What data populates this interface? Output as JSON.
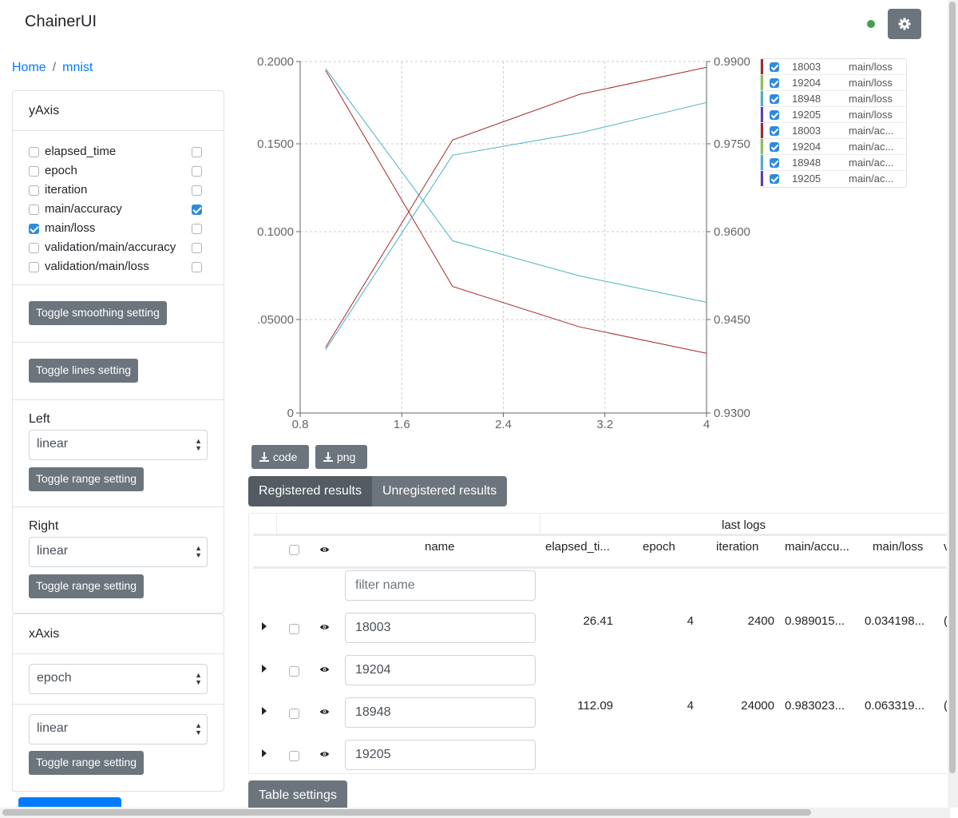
{
  "app": {
    "title": "ChainerUI",
    "status_color": "#43a047"
  },
  "breadcrumb": {
    "home": "Home",
    "separator": "/",
    "current": "mnist"
  },
  "yaxis": {
    "title": "yAxis",
    "items": [
      {
        "label": "elapsed_time",
        "left": false,
        "right": false
      },
      {
        "label": "epoch",
        "left": false,
        "right": false
      },
      {
        "label": "iteration",
        "left": false,
        "right": false
      },
      {
        "label": "main/accuracy",
        "left": false,
        "right": true
      },
      {
        "label": "main/loss",
        "left": true,
        "right": false
      },
      {
        "label": "validation/main/accuracy",
        "left": false,
        "right": false
      },
      {
        "label": "validation/main/loss",
        "left": false,
        "right": false
      }
    ],
    "toggle_smoothing": "Toggle smoothing setting",
    "toggle_lines": "Toggle lines setting",
    "left_label": "Left",
    "left_scale": "linear",
    "left_toggle_range": "Toggle range setting",
    "right_label": "Right",
    "right_scale": "linear",
    "right_toggle_range": "Toggle range setting"
  },
  "xaxis": {
    "title": "xAxis",
    "key": "epoch",
    "scale": "linear",
    "toggle_range": "Toggle range setting"
  },
  "chart_data": {
    "type": "line",
    "x_ticks": [
      "0.8",
      "1.6",
      "2.4",
      "3.2",
      "4"
    ],
    "xlim": [
      0.8,
      4
    ],
    "y_left_ticks": [
      "0.2000",
      "0.1500",
      "0.1000",
      ".05000",
      "0"
    ],
    "y_left_lim": [
      0,
      0.2
    ],
    "y_right_ticks": [
      "0.9900",
      "0.9750",
      "0.9600",
      "0.9450",
      "0.9300"
    ],
    "y_right_lim": [
      0.93,
      0.99
    ],
    "grid": true,
    "legend_position": "right",
    "series": [
      {
        "run": "18003",
        "key": "main/loss",
        "axis": "left",
        "color": "#a52a2a",
        "x": [
          1,
          2,
          3,
          4
        ],
        "y": [
          0.195,
          0.072,
          0.049,
          0.034
        ]
      },
      {
        "run": "18948",
        "key": "main/loss",
        "axis": "left",
        "color": "#47b3c2",
        "x": [
          1,
          2,
          3,
          4
        ],
        "y": [
          0.196,
          0.098,
          0.078,
          0.063
        ]
      },
      {
        "run": "18003",
        "key": "main/accuracy",
        "axis": "right",
        "color": "#a52a2a",
        "x": [
          1,
          2,
          3,
          4
        ],
        "y": [
          0.9412,
          0.9766,
          0.9844,
          0.989
        ]
      },
      {
        "run": "18948",
        "key": "main/accuracy",
        "axis": "right",
        "color": "#47b3c2",
        "x": [
          1,
          2,
          3,
          4
        ],
        "y": [
          0.9408,
          0.974,
          0.9778,
          0.983
        ]
      }
    ]
  },
  "legend": [
    {
      "id": "18003",
      "key": "main/loss",
      "color": "#a52a2a"
    },
    {
      "id": "19204",
      "key": "main/loss",
      "color": "#8bc34a"
    },
    {
      "id": "18948",
      "key": "main/loss",
      "color": "#47b3c2"
    },
    {
      "id": "19205",
      "key": "main/loss",
      "color": "#673ab7"
    },
    {
      "id": "18003",
      "key": "main/ac...",
      "color": "#a52a2a"
    },
    {
      "id": "19204",
      "key": "main/ac...",
      "color": "#8bc34a"
    },
    {
      "id": "18948",
      "key": "main/ac...",
      "color": "#47b3c2"
    },
    {
      "id": "19205",
      "key": "main/ac...",
      "color": "#673ab7"
    }
  ],
  "download": {
    "code": "code",
    "png": "png"
  },
  "tabs": {
    "registered": "Registered results",
    "unregistered": "Unregistered results"
  },
  "table": {
    "group_header": "last logs",
    "columns": {
      "name": "name",
      "elapsed": "elapsed_ti...",
      "epoch": "epoch",
      "iteration": "iteration",
      "accuracy": "main/accu...",
      "loss": "main/loss",
      "more": "v"
    },
    "filter_placeholder": "filter name",
    "rows": [
      {
        "name": "18003",
        "elapsed": "26.41",
        "epoch": "4",
        "iteration": "2400",
        "accuracy": "0.989015...",
        "loss": "0.034198...",
        "more": "("
      },
      {
        "name": "19204",
        "elapsed": "",
        "epoch": "",
        "iteration": "",
        "accuracy": "",
        "loss": "",
        "more": ""
      },
      {
        "name": "18948",
        "elapsed": "112.09",
        "epoch": "4",
        "iteration": "24000",
        "accuracy": "0.983023...",
        "loss": "0.063319...",
        "more": "("
      },
      {
        "name": "19205",
        "elapsed": "",
        "epoch": "",
        "iteration": "",
        "accuracy": "",
        "loss": "",
        "more": ""
      }
    ],
    "settings_button": "Table settings"
  }
}
